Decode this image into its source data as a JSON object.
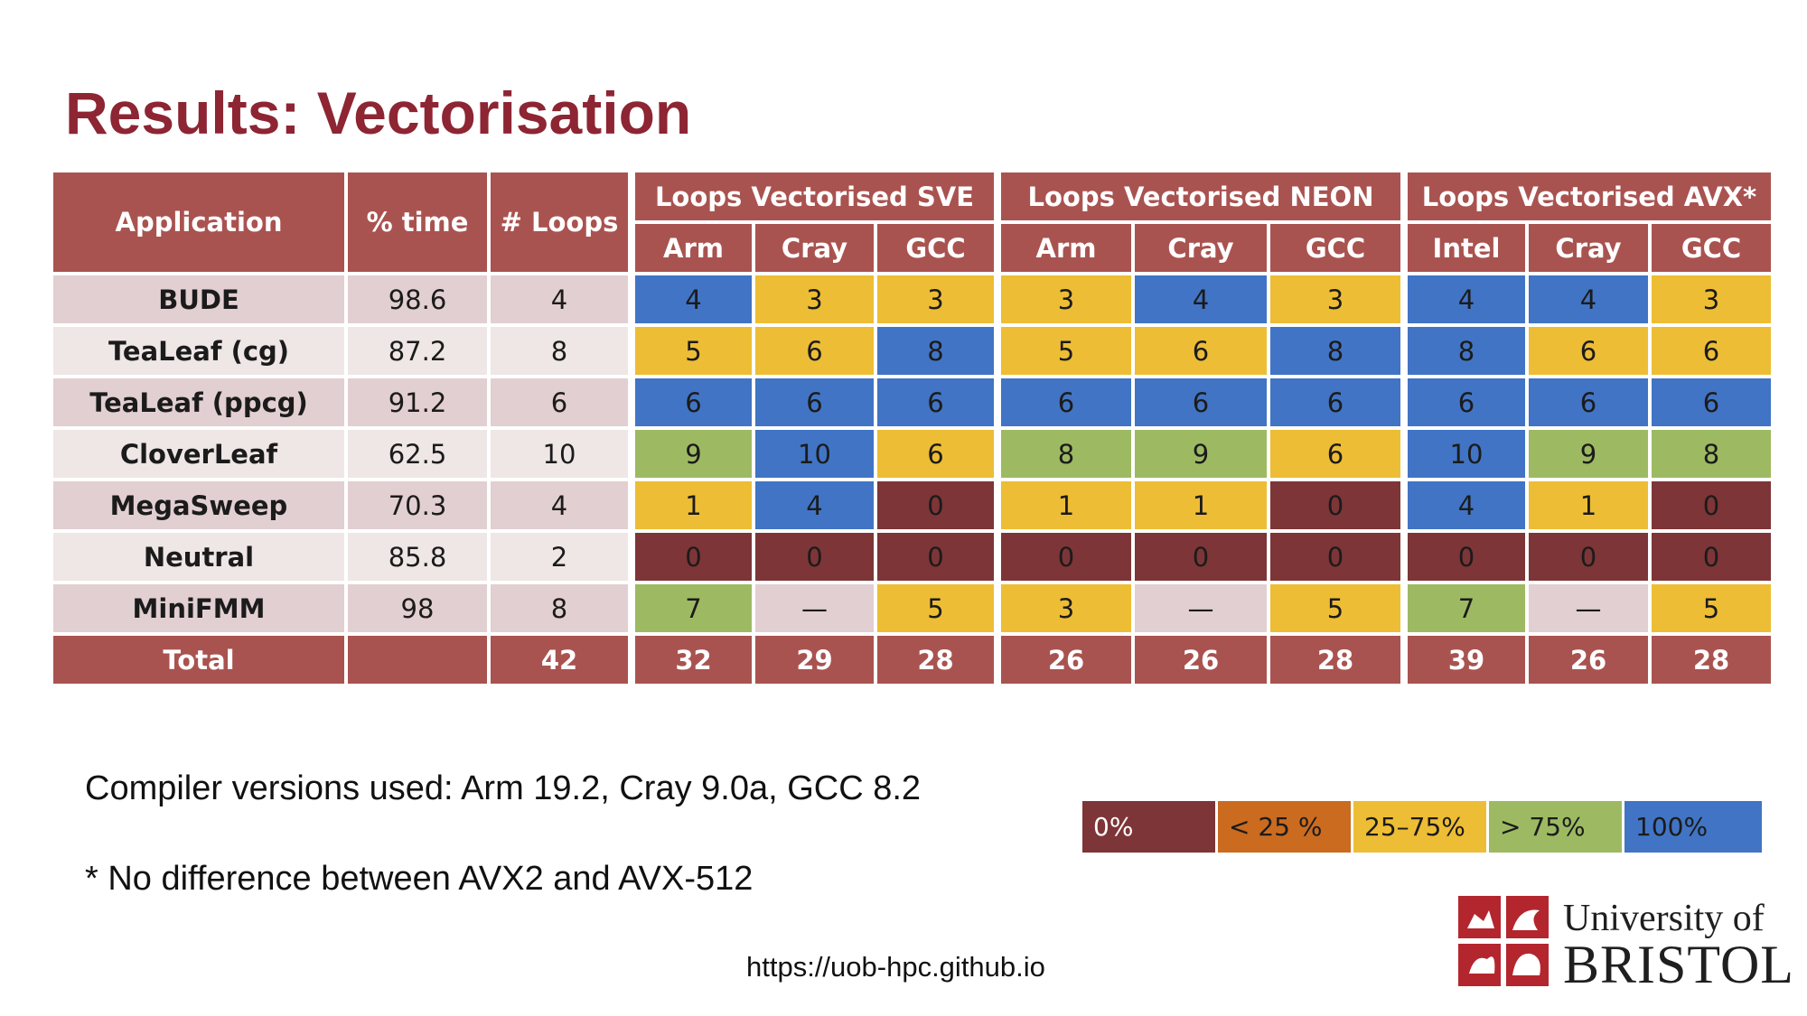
{
  "title": "Results: Vectorisation",
  "table": {
    "header_fixed": [
      "Application",
      "% time",
      "# Loops"
    ],
    "groups": [
      "Loops Vectorised SVE",
      "Loops Vectorised NEON",
      "Loops Vectorised AVX*"
    ],
    "subheaders": [
      "Arm",
      "Cray",
      "GCC",
      "Arm",
      "Cray",
      "GCC",
      "Intel",
      "Cray",
      "GCC"
    ],
    "rows": [
      {
        "app": "BUDE",
        "time": "98.6",
        "loops": "4",
        "values": [
          "4",
          "3",
          "3",
          "3",
          "4",
          "3",
          "4",
          "4",
          "3"
        ]
      },
      {
        "app": "TeaLeaf (cg)",
        "time": "87.2",
        "loops": "8",
        "values": [
          "5",
          "6",
          "8",
          "5",
          "6",
          "8",
          "8",
          "6",
          "6"
        ]
      },
      {
        "app": "TeaLeaf (ppcg)",
        "time": "91.2",
        "loops": "6",
        "values": [
          "6",
          "6",
          "6",
          "6",
          "6",
          "6",
          "6",
          "6",
          "6"
        ]
      },
      {
        "app": "CloverLeaf",
        "time": "62.5",
        "loops": "10",
        "values": [
          "9",
          "10",
          "6",
          "8",
          "9",
          "6",
          "10",
          "9",
          "8"
        ]
      },
      {
        "app": "MegaSweep",
        "time": "70.3",
        "loops": "4",
        "values": [
          "1",
          "4",
          "0",
          "1",
          "1",
          "0",
          "4",
          "1",
          "0"
        ]
      },
      {
        "app": "Neutral",
        "time": "85.8",
        "loops": "2",
        "values": [
          "0",
          "0",
          "0",
          "0",
          "0",
          "0",
          "0",
          "0",
          "0"
        ]
      },
      {
        "app": "MiniFMM",
        "time": "98",
        "loops": "8",
        "values": [
          "7",
          "—",
          "5",
          "3",
          "—",
          "5",
          "7",
          "—",
          "5"
        ]
      }
    ],
    "total": {
      "label": "Total",
      "time": "",
      "loops": "42",
      "values": [
        "32",
        "29",
        "28",
        "26",
        "26",
        "28",
        "39",
        "26",
        "28"
      ]
    }
  },
  "notes": {
    "compiler": "Compiler versions used: Arm 19.2, Cray 9.0a, GCC 8.2",
    "avx": "* No difference between AVX2 and AVX-512"
  },
  "legend": [
    {
      "label": "0%",
      "color": "#7d3537"
    },
    {
      "label": "< 25 %",
      "color": "#cb6b1f"
    },
    {
      "label": "25–75%",
      "color": "#edbd35"
    },
    {
      "label": "> 75%",
      "color": "#9dba62"
    },
    {
      "label": "100%",
      "color": "#4174c4"
    }
  ],
  "url": "https://uob-hpc.github.io",
  "logo": {
    "line1": "University of",
    "line2": "BRISTOL"
  }
}
